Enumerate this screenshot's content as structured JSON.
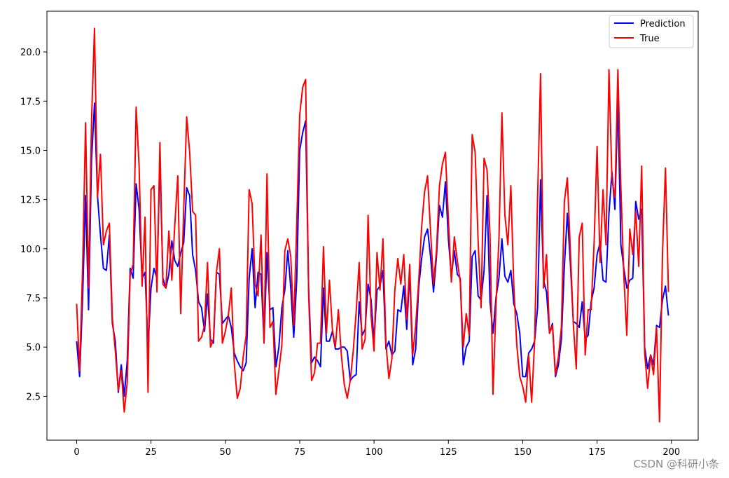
{
  "watermark": "CSDN @科研小条",
  "chart_data": {
    "type": "line",
    "title": "",
    "xlabel": "",
    "ylabel": "",
    "xlim": [
      -10,
      209
    ],
    "ylim": [
      0.27,
      22.07
    ],
    "xticks": [
      0,
      25,
      50,
      75,
      100,
      125,
      150,
      175,
      200
    ],
    "yticks": [
      2.5,
      5.0,
      7.5,
      10.0,
      12.5,
      15.0,
      17.5,
      20.0
    ],
    "ytick_labels": [
      "2.5",
      "5.0",
      "7.5",
      "10.0",
      "12.5",
      "15.0",
      "17.5",
      "20.0"
    ],
    "grid": false,
    "legend_position": "top-right",
    "x": [
      0,
      1,
      2,
      3,
      4,
      5,
      6,
      7,
      8,
      9,
      10,
      11,
      12,
      13,
      14,
      15,
      16,
      17,
      18,
      19,
      20,
      21,
      22,
      23,
      24,
      25,
      26,
      27,
      28,
      29,
      30,
      31,
      32,
      33,
      34,
      35,
      36,
      37,
      38,
      39,
      40,
      41,
      42,
      43,
      44,
      45,
      46,
      47,
      48,
      49,
      50,
      51,
      52,
      53,
      54,
      55,
      56,
      57,
      58,
      59,
      60,
      61,
      62,
      63,
      64,
      65,
      66,
      67,
      68,
      69,
      70,
      71,
      72,
      73,
      74,
      75,
      76,
      77,
      78,
      79,
      80,
      81,
      82,
      83,
      84,
      85,
      86,
      87,
      88,
      89,
      90,
      91,
      92,
      93,
      94,
      95,
      96,
      97,
      98,
      99,
      100,
      101,
      102,
      103,
      104,
      105,
      106,
      107,
      108,
      109,
      110,
      111,
      112,
      113,
      114,
      115,
      116,
      117,
      118,
      119,
      120,
      121,
      122,
      123,
      124,
      125,
      126,
      127,
      128,
      129,
      130,
      131,
      132,
      133,
      134,
      135,
      136,
      137,
      138,
      139,
      140,
      141,
      142,
      143,
      144,
      145,
      146,
      147,
      148,
      149,
      150,
      151,
      152,
      153,
      154,
      155,
      156,
      157,
      158,
      159,
      160,
      161,
      162,
      163,
      164,
      165,
      166,
      167,
      168,
      169,
      170,
      171,
      172,
      173,
      174,
      175,
      176,
      177,
      178,
      179,
      180,
      181,
      182,
      183,
      184,
      185,
      186,
      187,
      188,
      189,
      190,
      191,
      192,
      193,
      194,
      195,
      196,
      197,
      198,
      199
    ],
    "series": [
      {
        "name": "Prediction",
        "color": "#0000ff",
        "values": [
          5.3,
          3.5,
          7.5,
          12.7,
          6.9,
          14.5,
          17.4,
          12.7,
          10.7,
          9.0,
          8.9,
          10.7,
          6.2,
          5.3,
          2.7,
          4.1,
          2.5,
          4.3,
          9.0,
          8.5,
          13.3,
          12.0,
          8.5,
          8.8,
          5.0,
          8.0,
          9.0,
          8.5,
          14.5,
          8.5,
          8.0,
          8.7,
          10.4,
          9.4,
          9.1,
          9.8,
          10.3,
          13.1,
          12.7,
          9.7,
          8.9,
          7.3,
          7.0,
          5.8,
          7.7,
          5.4,
          5.2,
          8.8,
          8.7,
          6.2,
          6.4,
          6.6,
          6.0,
          4.7,
          4.3,
          4.0,
          3.8,
          4.2,
          8.5,
          10.0,
          7.0,
          8.8,
          8.7,
          5.3,
          9.8,
          6.9,
          7.0,
          4.0,
          5.0,
          7.0,
          7.9,
          9.9,
          8.0,
          5.5,
          8.4,
          15.0,
          15.9,
          16.5,
          8.0,
          4.2,
          4.5,
          4.3,
          4.0,
          8.0,
          5.3,
          5.3,
          5.8,
          4.9,
          4.9,
          5.0,
          5.0,
          4.8,
          3.3,
          3.5,
          3.6,
          7.3,
          5.6,
          5.9,
          8.2,
          7.4,
          5.3,
          7.9,
          8.1,
          8.9,
          4.9,
          5.3,
          4.6,
          4.8,
          6.9,
          6.8,
          8.1,
          5.9,
          8.8,
          4.1,
          4.9,
          8.0,
          9.5,
          10.6,
          11.0,
          9.6,
          7.8,
          9.6,
          12.2,
          11.6,
          13.4,
          10.5,
          8.6,
          9.9,
          8.7,
          8.5,
          4.1,
          5.0,
          5.3,
          9.6,
          9.9,
          7.6,
          7.4,
          8.9,
          12.7,
          7.3,
          5.7,
          7.5,
          8.5,
          10.5,
          8.6,
          8.3,
          8.9,
          7.2,
          6.7,
          5.7,
          3.5,
          3.5,
          4.7,
          4.9,
          5.3,
          7.0,
          13.5,
          8.4,
          7.8,
          5.7,
          6.2,
          3.5,
          4.1,
          5.4,
          9.1,
          11.8,
          9.3,
          6.3,
          6.2,
          6.0,
          7.3,
          5.4,
          5.6,
          7.3,
          8.0,
          9.7,
          10.3,
          8.4,
          8.3,
          11.8,
          13.9,
          12.0,
          17.6,
          10.2,
          9.0,
          8.0,
          8.4,
          8.5,
          12.4,
          11.5,
          12.0,
          5.0,
          3.9,
          4.6,
          4.1,
          6.1,
          6.0,
          7.4,
          8.1,
          6.6
        ]
      },
      {
        "name": "True",
        "color": "#ff0000",
        "values": [
          7.2,
          3.8,
          9.0,
          16.4,
          8.0,
          16.5,
          21.2,
          12.6,
          14.8,
          10.2,
          10.9,
          11.3,
          6.5,
          4.8,
          2.8,
          3.8,
          1.7,
          3.2,
          8.7,
          9.2,
          17.2,
          14.2,
          8.1,
          11.6,
          2.7,
          13.0,
          13.2,
          7.8,
          15.4,
          8.2,
          8.0,
          10.9,
          8.4,
          11.2,
          13.7,
          6.7,
          12.0,
          16.7,
          14.9,
          11.9,
          11.7,
          5.3,
          5.5,
          6.1,
          9.3,
          5.0,
          5.4,
          8.8,
          10.0,
          5.2,
          5.8,
          6.6,
          8.0,
          4.2,
          2.4,
          2.9,
          4.5,
          5.6,
          13.0,
          12.3,
          8.2,
          7.6,
          10.7,
          5.2,
          13.8,
          6.0,
          6.3,
          2.6,
          3.8,
          5.1,
          9.9,
          10.5,
          9.6,
          6.1,
          11.2,
          16.8,
          18.2,
          18.6,
          7.7,
          3.3,
          3.7,
          5.2,
          5.2,
          10.1,
          5.7,
          8.4,
          5.9,
          5.0,
          6.9,
          4.6,
          3.1,
          2.4,
          3.3,
          4.8,
          6.8,
          9.3,
          4.9,
          5.4,
          11.7,
          6.6,
          4.8,
          9.8,
          7.9,
          10.5,
          5.2,
          3.4,
          4.4,
          7.9,
          9.5,
          8.2,
          9.7,
          6.4,
          9.2,
          4.6,
          6.1,
          8.3,
          11.1,
          12.9,
          13.7,
          10.9,
          8.2,
          9.9,
          13.2,
          14.3,
          14.9,
          11.5,
          8.3,
          10.6,
          9.4,
          8.3,
          5.0,
          6.7,
          5.6,
          15.8,
          14.9,
          10.4,
          7.0,
          14.6,
          14.0,
          10.7,
          2.6,
          7.1,
          10.5,
          16.9,
          11.7,
          10.2,
          13.2,
          8.1,
          5.1,
          3.5,
          3.0,
          2.2,
          4.6,
          2.2,
          5.3,
          12.6,
          18.9,
          8.0,
          9.7,
          5.7,
          6.1,
          3.6,
          4.5,
          6.0,
          12.4,
          13.6,
          10.0,
          6.2,
          3.9,
          10.6,
          11.3,
          4.6,
          6.9,
          6.9,
          10.3,
          15.2,
          9.3,
          13.0,
          10.2,
          19.1,
          13.5,
          12.6,
          19.1,
          13.1,
          8.6,
          5.6,
          11.0,
          9.7,
          11.9,
          9.1,
          14.2,
          4.7,
          2.9,
          4.6,
          3.6,
          6.0,
          1.2,
          9.8,
          14.1,
          7.8
        ]
      }
    ]
  }
}
